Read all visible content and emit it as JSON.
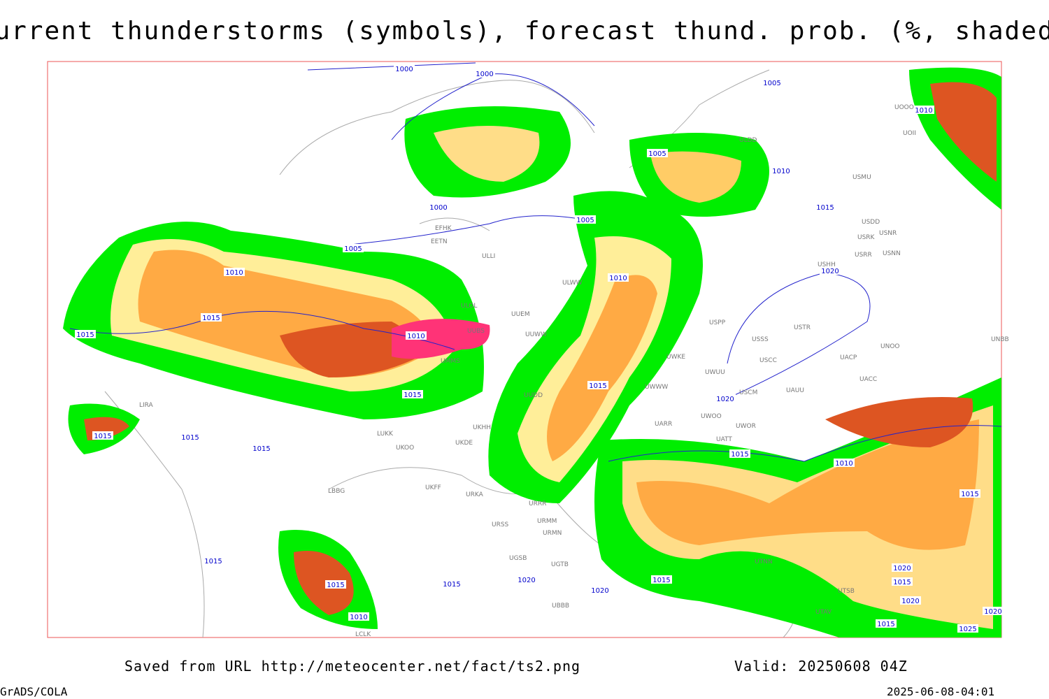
{
  "title": "Current thunderstorms (symbols), forecast thund. prob. (%, shaded)",
  "source": "Saved from URL http://meteocenter.net/fact/ts2.png",
  "valid": "Valid: 20250608 04Z",
  "software": "GrADS/COLA",
  "timestamp": "2025-06-08-04:01",
  "isobar_labels": [
    1000,
    1000,
    1005,
    1010,
    1005,
    1010,
    1000,
    1005,
    1015,
    1005,
    1010,
    1010,
    1020,
    1015,
    1015,
    1010,
    1015,
    1015,
    1020,
    1015,
    1015,
    1015,
    1015,
    1010,
    1015,
    1015,
    1015,
    1015,
    1020,
    1020,
    1015,
    1010,
    1020,
    1015,
    1020,
    1015,
    1025,
    1020
  ],
  "stations": [
    "EFHK",
    "EETN",
    "ULLI",
    "ULOL",
    "UUEM",
    "ULWW",
    "UUWW",
    "UUBS",
    "UUDD",
    "LUKK",
    "UKOO",
    "UKDE",
    "UKHH",
    "UKFF",
    "URKA",
    "URRR",
    "URSS",
    "URMM",
    "URMN",
    "UGSB",
    "UGTB",
    "UBBB",
    "LBBG",
    "USSS",
    "USTR",
    "USCC",
    "USCM",
    "UAUU",
    "UWKE",
    "UWWW",
    "UWUU",
    "UARR",
    "UWOO",
    "UWOR",
    "UATT",
    "UACC",
    "UACP",
    "UNOO",
    "UNBB",
    "USPP",
    "USRR",
    "USNN",
    "USRK",
    "USNR",
    "USDD",
    "USHH",
    "USMU",
    "UOII",
    "UOOO",
    "ULDD",
    "UTNN",
    "UTSB",
    "UTAV",
    "LCLK",
    "LIRA",
    "UMMS"
  ]
}
